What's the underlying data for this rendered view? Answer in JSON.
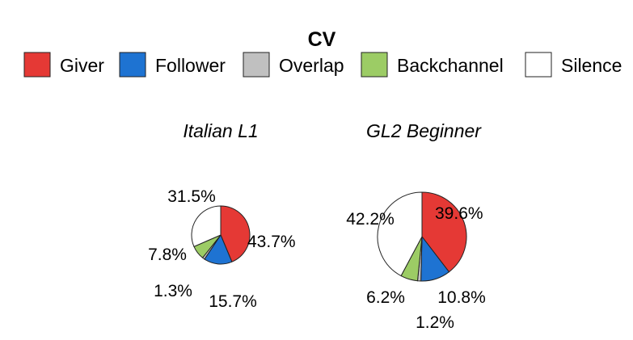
{
  "chart_data": {
    "type": "pie",
    "title": "CV",
    "legend": {
      "placement": "top",
      "entries": [
        {
          "name": "Giver",
          "color": "#e53935"
        },
        {
          "name": "Follower",
          "color": "#1e73d2"
        },
        {
          "name": "Overlap",
          "color": "#c0c0c0"
        },
        {
          "name": "Backchannel",
          "color": "#9ccc65"
        },
        {
          "name": "Silence",
          "color": "#ffffff"
        }
      ]
    },
    "categories": [
      "Giver",
      "Follower",
      "Overlap",
      "Backchannel",
      "Silence"
    ],
    "charts": [
      {
        "title": "Italian L1",
        "values": [
          43.7,
          15.7,
          1.3,
          7.8,
          31.5
        ],
        "labels": [
          "43.7%",
          "15.7%",
          "1.3%",
          "7.8%",
          "31.5%"
        ]
      },
      {
        "title": "GL2 Beginner",
        "values": [
          39.6,
          10.8,
          1.2,
          6.2,
          42.2
        ],
        "labels": [
          "39.6%",
          "10.8%",
          "1.2%",
          "6.2%",
          "42.2%"
        ]
      }
    ]
  }
}
